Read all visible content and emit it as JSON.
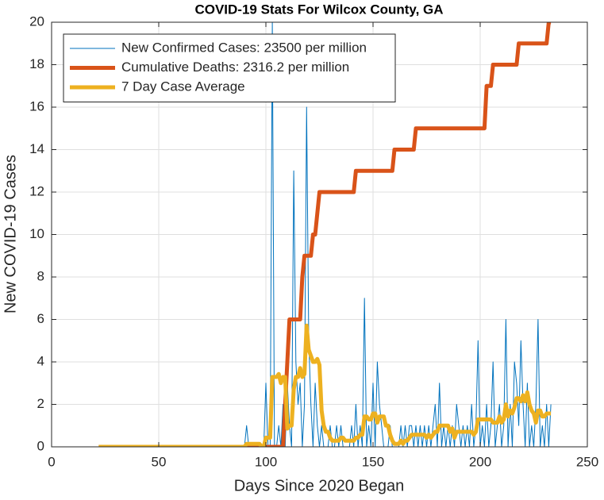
{
  "chart_data": {
    "type": "line",
    "title": "COVID-19 Stats For Wilcox County, GA",
    "xlabel": "Days Since 2020 Began",
    "ylabel": "New COVID-19 Cases",
    "xlim": [
      0,
      250
    ],
    "xticks": [
      0,
      50,
      100,
      150,
      200,
      250
    ],
    "ylim": [
      0,
      20
    ],
    "yticks": [
      0,
      2,
      4,
      6,
      8,
      10,
      12,
      14,
      16,
      18,
      20
    ],
    "grid": true,
    "legend": "upper left",
    "x": [
      22,
      23,
      24,
      25,
      26,
      27,
      28,
      29,
      30,
      31,
      32,
      33,
      34,
      35,
      36,
      37,
      38,
      39,
      40,
      41,
      42,
      43,
      44,
      45,
      46,
      47,
      48,
      49,
      50,
      51,
      52,
      53,
      54,
      55,
      56,
      57,
      58,
      59,
      60,
      61,
      62,
      63,
      64,
      65,
      66,
      67,
      68,
      69,
      70,
      71,
      72,
      73,
      74,
      75,
      76,
      77,
      78,
      79,
      80,
      81,
      82,
      83,
      84,
      85,
      86,
      87,
      88,
      89,
      90,
      91,
      92,
      93,
      94,
      95,
      96,
      97,
      98,
      99,
      100,
      101,
      102,
      103,
      104,
      105,
      106,
      107,
      108,
      109,
      110,
      111,
      112,
      113,
      114,
      115,
      116,
      117,
      118,
      119,
      120,
      121,
      122,
      123,
      124,
      125,
      126,
      127,
      128,
      129,
      130,
      131,
      132,
      133,
      134,
      135,
      136,
      137,
      138,
      139,
      140,
      141,
      142,
      143,
      144,
      145,
      146,
      147,
      148,
      149,
      150,
      151,
      152,
      153,
      154,
      155,
      156,
      157,
      158,
      159,
      160,
      161,
      162,
      163,
      164,
      165,
      166,
      167,
      168,
      169,
      170,
      171,
      172,
      173,
      174,
      175,
      176,
      177,
      178,
      179,
      180,
      181,
      182,
      183,
      184,
      185,
      186,
      187,
      188,
      189,
      190,
      191,
      192,
      193,
      194,
      195,
      196,
      197,
      198,
      199,
      200,
      201,
      202,
      203,
      204,
      205,
      206,
      207,
      208,
      209,
      210,
      211,
      212,
      213,
      214,
      215,
      216,
      217,
      218,
      219,
      220,
      221,
      222,
      223,
      224,
      225,
      226,
      227,
      228,
      229,
      230,
      231,
      232,
      233
    ],
    "series": [
      {
        "name": "New Confirmed Cases: 23500 per million",
        "color": "#0072bd",
        "line_width": 1,
        "values": [
          0,
          0,
          0,
          0,
          0,
          0,
          0,
          0,
          0,
          0,
          0,
          0,
          0,
          0,
          0,
          0,
          0,
          0,
          0,
          0,
          0,
          0,
          0,
          0,
          0,
          0,
          0,
          0,
          0,
          0,
          0,
          0,
          0,
          0,
          0,
          0,
          0,
          0,
          0,
          0,
          0,
          0,
          0,
          0,
          0,
          0,
          0,
          0,
          0,
          0,
          0,
          0,
          0,
          0,
          0,
          0,
          0,
          0,
          0,
          0,
          0,
          0,
          0,
          0,
          0,
          0,
          0,
          0,
          0,
          1,
          0,
          0,
          0,
          0,
          0,
          0,
          0,
          0,
          3,
          0,
          0,
          20,
          0,
          0,
          1,
          0,
          2,
          0,
          3,
          1,
          0,
          13,
          4,
          2,
          3,
          0,
          2,
          16,
          5,
          2,
          0,
          3,
          1,
          0,
          1,
          0,
          0,
          0,
          1,
          0,
          0,
          1,
          0,
          1,
          0,
          0,
          0,
          0,
          1,
          0,
          2,
          0,
          1,
          0,
          7,
          0,
          1,
          0,
          3,
          0,
          4,
          2,
          1,
          0,
          0,
          0,
          1,
          0,
          0,
          0,
          0,
          1,
          0,
          1,
          0,
          1,
          1,
          0,
          1,
          0,
          1,
          0,
          1,
          0,
          1,
          0,
          1,
          2,
          0,
          3,
          0,
          1,
          0,
          1,
          0,
          1,
          0,
          2,
          1,
          0,
          1,
          0,
          1,
          0,
          2,
          0,
          1,
          5,
          0,
          1,
          0,
          2,
          0,
          1,
          4,
          0,
          1,
          2,
          0,
          1,
          6,
          0,
          2,
          0,
          4,
          3,
          1,
          5,
          2,
          0,
          3,
          0,
          1,
          0,
          2,
          6,
          0,
          1,
          0,
          2,
          0,
          2
        ]
      },
      {
        "name": "Cumulative Deaths: 2316.2 per million",
        "color": "#d95319",
        "line_width": 5,
        "values": [
          0,
          0,
          0,
          0,
          0,
          0,
          0,
          0,
          0,
          0,
          0,
          0,
          0,
          0,
          0,
          0,
          0,
          0,
          0,
          0,
          0,
          0,
          0,
          0,
          0,
          0,
          0,
          0,
          0,
          0,
          0,
          0,
          0,
          0,
          0,
          0,
          0,
          0,
          0,
          0,
          0,
          0,
          0,
          0,
          0,
          0,
          0,
          0,
          0,
          0,
          0,
          0,
          0,
          0,
          0,
          0,
          0,
          0,
          0,
          0,
          0,
          0,
          0,
          0,
          0,
          0,
          0,
          0,
          0,
          0,
          0,
          0,
          0,
          0,
          0,
          0,
          0,
          0,
          0,
          0,
          0,
          0,
          0,
          0,
          0,
          0,
          0,
          2,
          4,
          6,
          6,
          6,
          6,
          6,
          6,
          8,
          9,
          9,
          9,
          9,
          10,
          10,
          11,
          12,
          12,
          12,
          12,
          12,
          12,
          12,
          12,
          12,
          12,
          12,
          12,
          12,
          12,
          12,
          12,
          12,
          13,
          13,
          13,
          13,
          13,
          13,
          13,
          13,
          13,
          13,
          13,
          13,
          13,
          13,
          13,
          13,
          13,
          13,
          14,
          14,
          14,
          14,
          14,
          14,
          14,
          14,
          14,
          14,
          15,
          15,
          15,
          15,
          15,
          15,
          15,
          15,
          15,
          15,
          15,
          15,
          15,
          15,
          15,
          15,
          15,
          15,
          15,
          15,
          15,
          15,
          15,
          15,
          15,
          15,
          15,
          15,
          15,
          15,
          15,
          15,
          15,
          17,
          17,
          17,
          18,
          18,
          18,
          18,
          18,
          18,
          18,
          18,
          18,
          18,
          18,
          18,
          19,
          19,
          19,
          19,
          19,
          19,
          19,
          19,
          19,
          19,
          19,
          19,
          19,
          19,
          20,
          20
        ]
      },
      {
        "name": "7 Day Case Average",
        "color": "#edb120",
        "line_width": 5,
        "values": [
          0,
          0,
          0,
          0,
          0,
          0,
          0,
          0,
          0,
          0,
          0,
          0,
          0,
          0,
          0,
          0,
          0,
          0,
          0,
          0,
          0,
          0,
          0,
          0,
          0,
          0,
          0,
          0,
          0,
          0,
          0,
          0,
          0,
          0,
          0,
          0,
          0,
          0,
          0,
          0,
          0,
          0,
          0,
          0,
          0,
          0,
          0,
          0,
          0,
          0,
          0,
          0,
          0,
          0,
          0,
          0,
          0,
          0,
          0,
          0,
          0,
          0,
          0,
          0,
          0,
          0,
          0,
          0,
          0,
          0.14,
          0.14,
          0.14,
          0.14,
          0.14,
          0.14,
          0.14,
          0,
          0,
          0.43,
          0.43,
          0.43,
          3.29,
          3.29,
          3.29,
          3.43,
          3.0,
          3.29,
          3.29,
          0.86,
          1.0,
          1.0,
          2.71,
          3.29,
          3.29,
          3.71,
          3.29,
          3.43,
          5.71,
          4.57,
          4.29,
          4.0,
          4.0,
          4.14,
          3.86,
          1.71,
          1.0,
          0.71,
          0.71,
          0.43,
          0.29,
          0.29,
          0.29,
          0.29,
          0.43,
          0.43,
          0.29,
          0.29,
          0.29,
          0.29,
          0.29,
          0.43,
          0.43,
          0.57,
          0.57,
          1.43,
          1.43,
          1.29,
          1.29,
          1.57,
          1.57,
          1.14,
          1.43,
          1.43,
          1.43,
          1.0,
          1.0,
          0.57,
          0.29,
          0.14,
          0.14,
          0.14,
          0.29,
          0.14,
          0.29,
          0.29,
          0.43,
          0.57,
          0.57,
          0.57,
          0.57,
          0.57,
          0.57,
          0.57,
          0.43,
          0.57,
          0.43,
          0.57,
          0.71,
          0.71,
          1.0,
          1.0,
          1.0,
          1.0,
          1.0,
          0.71,
          0.86,
          0.43,
          0.71,
          0.71,
          0.71,
          0.71,
          0.71,
          0.71,
          0.71,
          0.71,
          0.57,
          0.71,
          1.29,
          1.29,
          1.29,
          1.29,
          1.29,
          1.29,
          1.29,
          1.14,
          1.14,
          1.14,
          1.43,
          1.14,
          1.29,
          2.0,
          1.43,
          1.71,
          1.57,
          1.86,
          2.29,
          2.29,
          2.14,
          2.43,
          2.14,
          2.57,
          2.0,
          1.71,
          1.57,
          1.14,
          1.71,
          1.71,
          1.43,
          1.43,
          1.57,
          1.57,
          1.57
        ]
      }
    ]
  }
}
